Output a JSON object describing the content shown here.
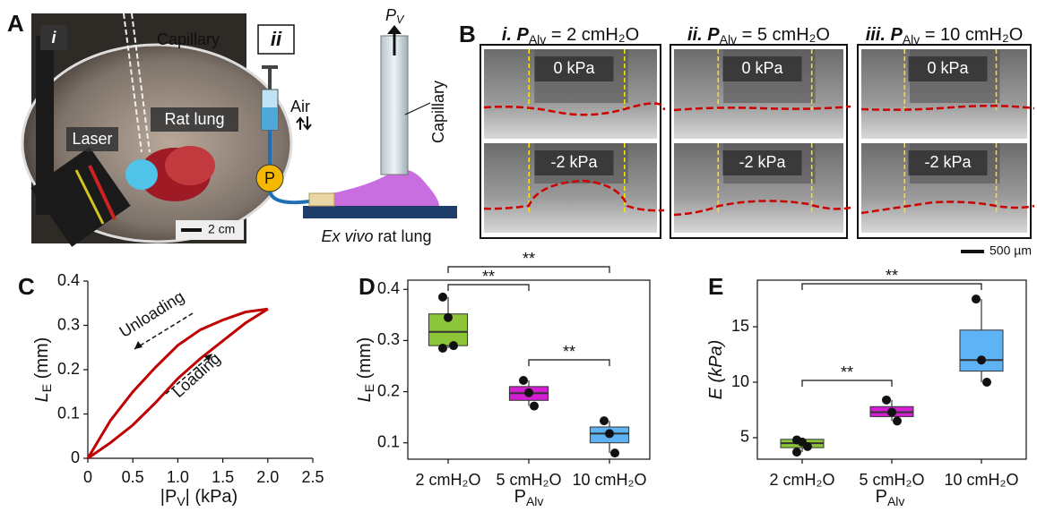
{
  "panel_a": {
    "letter": "A",
    "i": {
      "label": "i",
      "capillary": "Capillary",
      "rat_lung": "Rat lung",
      "laser": "Laser",
      "scale": "2 cm"
    },
    "ii": {
      "label": "ii",
      "pv": [
        "P",
        "V"
      ],
      "air": "Air",
      "capillary": "Capillary",
      "p": "P",
      "caption_italic": "Ex vivo",
      "caption": " rat lung"
    }
  },
  "panel_b": {
    "letter": "B",
    "scale": "500 µm",
    "columns": [
      {
        "title": [
          "i. P",
          "Alv",
          " = 2 cmH₂O"
        ],
        "top": "0 kPa",
        "bottom": "-2 kPa"
      },
      {
        "title": [
          "ii. P",
          "Alv",
          " = 5 cmH₂O"
        ],
        "top": "0 kPa",
        "bottom": "-2 kPa"
      },
      {
        "title": [
          "iii. P",
          "Alv",
          " = 10 cmH₂O"
        ],
        "top": "0 kPa",
        "bottom": "-2 kPa"
      }
    ]
  },
  "chart_data": [
    {
      "type": "line",
      "letter": "C",
      "x_label": [
        "|P",
        "V",
        "| (kPa)"
      ],
      "y_label": [
        "L",
        "E",
        " (mm)"
      ],
      "xlim": [
        0,
        2.5
      ],
      "xticks": [
        0,
        0.5,
        {
          "value": 1,
          "label": "1.0"
        },
        1.5,
        {
          "value": 2,
          "label": "2.0"
        },
        2.5
      ],
      "ylim": [
        0,
        0.4
      ],
      "yticks": [
        0,
        0.1,
        0.2,
        0.3,
        0.4
      ],
      "series": [
        {
          "color": "#c00000",
          "x": [
            0,
            0.25,
            0.5,
            0.75,
            1.0,
            1.25,
            1.5,
            1.75,
            2.0
          ],
          "values": [
            0,
            0.035,
            0.075,
            0.125,
            0.18,
            0.225,
            0.265,
            0.305,
            0.337
          ]
        },
        {
          "color": "#c00000",
          "x": [
            2.0,
            1.75,
            1.5,
            1.25,
            1.0,
            0.75,
            0.5,
            0.25,
            0
          ],
          "values": [
            0.337,
            0.33,
            0.312,
            0.29,
            0.255,
            0.205,
            0.15,
            0.085,
            0
          ]
        }
      ],
      "annotations": [
        "Unloading",
        "Loading"
      ]
    },
    {
      "type": "box",
      "letter": "D",
      "x_label": [
        "P",
        "Alv"
      ],
      "y_label": [
        "L",
        "E",
        " (mm)"
      ],
      "categories": [
        "2 cmH₂O",
        "5 cmH₂O",
        "10 cmH₂O"
      ],
      "ylim": [
        0.068,
        0.418
      ],
      "yticks": [
        0.1,
        0.2,
        0.3,
        0.4
      ],
      "boxes": [
        {
          "color": "#8cc43a",
          "whisker_low": 0.285,
          "q1": 0.29,
          "median": 0.317,
          "q3": 0.352,
          "whisker_high": 0.385,
          "points": [
            0.385,
            0.345,
            0.29,
            0.285
          ]
        },
        {
          "color": "#d11fd1",
          "whisker_low": 0.172,
          "q1": 0.183,
          "median": 0.197,
          "q3": 0.21,
          "whisker_high": 0.222,
          "points": [
            0.222,
            0.198,
            0.172
          ]
        },
        {
          "color": "#5eb3f5",
          "whisker_low": 0.08,
          "q1": 0.1,
          "median": 0.118,
          "q3": 0.131,
          "whisker_high": 0.143,
          "points": [
            0.143,
            0.118,
            0.08
          ]
        }
      ],
      "significance": [
        "**",
        "**",
        "**"
      ]
    },
    {
      "type": "box",
      "letter": "E",
      "x_label": [
        "P",
        "Alv"
      ],
      "y_label": [
        "E (kPa)"
      ],
      "categories": [
        "2 cmH₂O",
        "5 cmH₂O",
        "10 cmH₂O"
      ],
      "ylim": [
        3.06,
        19.2
      ],
      "yticks": [
        5,
        10,
        15
      ],
      "boxes": [
        {
          "color": "#8cc43a",
          "whisker_low": 3.7,
          "q1": 4.1,
          "median": 4.5,
          "q3": 4.85,
          "whisker_high": 4.85,
          "points": [
            4.8,
            4.6,
            4.2,
            3.7
          ]
        },
        {
          "color": "#d11fd1",
          "whisker_low": 6.5,
          "q1": 6.9,
          "median": 7.3,
          "q3": 7.8,
          "whisker_high": 8.4,
          "points": [
            8.4,
            7.3,
            6.5
          ]
        },
        {
          "color": "#5eb3f5",
          "whisker_low": 10,
          "q1": 11,
          "median": 12,
          "q3": 14.7,
          "whisker_high": 17.5,
          "points": [
            17.5,
            12,
            10
          ]
        }
      ],
      "significance": [
        "**",
        "**"
      ]
    }
  ]
}
